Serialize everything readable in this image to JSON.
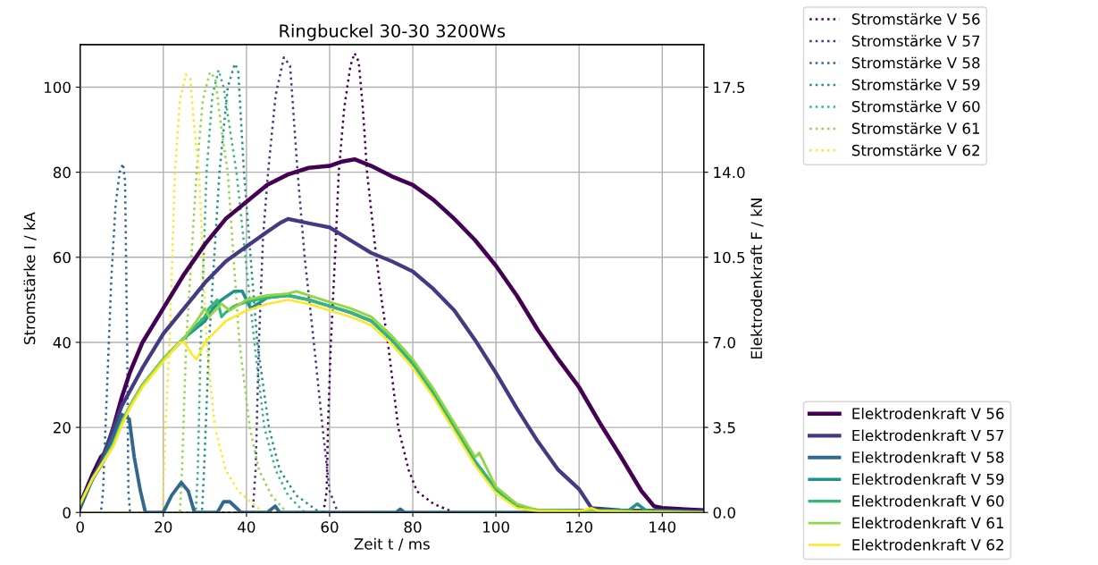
{
  "chart_data": {
    "type": "line",
    "title": "Ringbuckel 30-30 3200Ws",
    "xlabel": "Zeit t / ms",
    "ylabel": "Stromstärke I / kA",
    "y2label": "Elektrodenkraft F / kN",
    "xlim": [
      0,
      150
    ],
    "xticks": [
      0,
      20,
      40,
      60,
      80,
      100,
      120,
      140
    ],
    "ylim": [
      0,
      110
    ],
    "yticks": [
      0,
      20,
      40,
      60,
      80,
      100
    ],
    "y2lim": [
      0,
      19.25
    ],
    "y2ticks": [
      {
        "value": 0,
        "label": "0.0"
      },
      3.5,
      {
        "value": 7,
        "label": "7.0"
      },
      10.5,
      {
        "value": 14,
        "label": "14.0"
      },
      17.5
    ],
    "grid": true,
    "legend": "right",
    "series": [
      {
        "name": "Stromstärke V 56",
        "color": "#440154",
        "line_style": "dotted",
        "x": [
          0,
          58.5,
          59.3,
          59.6,
          60.3,
          61.3,
          62.2,
          63.5,
          65,
          66,
          67,
          68,
          69,
          71,
          72.5,
          74,
          76.5,
          79,
          81,
          85,
          90,
          150
        ],
        "values": [
          0,
          0,
          5,
          20,
          40,
          60,
          80,
          95,
          105,
          108,
          106,
          95,
          80,
          62,
          50,
          40,
          20,
          10,
          5,
          2,
          0,
          0
        ]
      },
      {
        "name": "Stromstärke V 57",
        "color": "#443983",
        "line_style": "dotted",
        "x": [
          0,
          41.5,
          42.2,
          43,
          44,
          45.2,
          47,
          49,
          50.5,
          52.3,
          54,
          56.2,
          58.3,
          60,
          62,
          150
        ],
        "values": [
          0,
          0,
          10,
          40,
          65,
          80,
          98,
          107,
          105,
          80,
          60,
          40,
          20,
          5,
          0,
          0
        ]
      },
      {
        "name": "Stromstärke V 58",
        "color": "#31688e",
        "line_style": "dotted",
        "x": [
          0,
          5,
          5.5,
          6.5,
          7.5,
          8.5,
          9.5,
          10.3,
          10.8,
          11.3,
          11.6,
          12,
          150
        ],
        "values": [
          0,
          0,
          5,
          30,
          55,
          72,
          80,
          82,
          78,
          40,
          5,
          0,
          0
        ]
      },
      {
        "name": "Stromstärke V 59",
        "color": "#21918c",
        "line_style": "dotted",
        "x": [
          0,
          29.3,
          29.8,
          31,
          33.5,
          35.5,
          37.2,
          38,
          39.4,
          42.6,
          45.4,
          48,
          52,
          57.6,
          150
        ],
        "values": [
          0,
          0,
          10,
          40,
          80,
          100,
          105.5,
          104,
          80,
          40,
          20,
          10,
          4,
          0,
          0
        ]
      },
      {
        "name": "Stromstärke V 60",
        "color": "#35b779",
        "line_style": "dotted",
        "x": [
          0,
          27.8,
          28.3,
          29,
          30.4,
          31.8,
          33.3,
          34.5,
          37.6,
          41.9,
          44.3,
          47,
          50,
          54,
          150
        ],
        "values": [
          0,
          0,
          10,
          40,
          80,
          98,
          104,
          100,
          80,
          40,
          20,
          10,
          4,
          0,
          0
        ]
      },
      {
        "name": "Stromstärke V 61",
        "color": "#90d743",
        "line_style": "dotted",
        "x": [
          0,
          24,
          24.5,
          25.5,
          28,
          29.5,
          31.2,
          32.5,
          34,
          35.5,
          38.3,
          40.8,
          43,
          46,
          49.7,
          150
        ],
        "values": [
          0,
          0,
          10,
          40,
          80,
          97,
          103.5,
          102,
          90,
          80,
          40,
          20,
          10,
          4,
          0,
          0
        ]
      },
      {
        "name": "Stromstärke V 62",
        "color": "#fde725",
        "line_style": "dotted",
        "x": [
          0,
          19.8,
          20.5,
          21.5,
          22.8,
          24,
          25.4,
          26.5,
          27.5,
          28.6,
          30.4,
          32.4,
          35,
          38,
          44,
          150
        ],
        "values": [
          0,
          0,
          20,
          40,
          80,
          97,
          103,
          102,
          90,
          80,
          40,
          20,
          10,
          5,
          0,
          0
        ]
      },
      {
        "name": "Elektrodenkraft V 56",
        "color": "#440154",
        "line_style": "solid",
        "axis": "y2",
        "x": [
          0,
          3,
          5,
          6,
          8,
          10,
          12,
          15,
          20,
          25,
          30,
          35,
          40,
          45,
          50,
          55,
          60,
          63,
          66,
          70,
          75,
          80,
          85,
          90,
          95,
          100,
          105,
          110,
          115,
          120,
          125,
          130,
          135,
          138,
          140,
          150
        ],
        "values": [
          0.35,
          1.58,
          2.28,
          2.45,
          3.5,
          4.73,
          5.78,
          7.0,
          8.4,
          9.8,
          11.03,
          12.08,
          12.78,
          13.48,
          13.91,
          14.18,
          14.26,
          14.44,
          14.53,
          14.26,
          13.83,
          13.48,
          12.86,
          12.08,
          11.2,
          10.15,
          8.93,
          7.53,
          6.3,
          5.15,
          3.68,
          2.31,
          0.88,
          0.26,
          0.18,
          0.09
        ]
      },
      {
        "name": "Elektrodenkraft V 57",
        "color": "#443983",
        "line_style": "solid",
        "axis": "y2",
        "x": [
          0,
          3,
          5,
          10,
          15,
          20,
          25,
          30,
          35,
          40,
          45,
          48,
          50,
          55,
          60,
          65,
          70,
          75,
          80,
          85,
          90,
          95,
          100,
          105,
          110,
          115,
          120,
          123,
          130,
          150
        ],
        "values": [
          0.35,
          1.4,
          2.1,
          4.38,
          5.95,
          7.35,
          8.4,
          9.45,
          10.33,
          10.94,
          11.55,
          11.9,
          12.08,
          11.9,
          11.73,
          11.2,
          10.68,
          10.33,
          9.92,
          9.19,
          8.31,
          7.09,
          5.74,
          4.29,
          2.94,
          1.75,
          0.96,
          0.18,
          0.09,
          0.05
        ]
      },
      {
        "name": "Elektrodenkraft V 58",
        "color": "#31688e",
        "line_style": "solid",
        "axis": "y2",
        "x": [
          0,
          3,
          5,
          8,
          10,
          11.8,
          13,
          14.5,
          15.7,
          20,
          22,
          24.3,
          26,
          27.5,
          33,
          34.5,
          36,
          38.7,
          45,
          46.9,
          48,
          60,
          76,
          77,
          78,
          90,
          150
        ],
        "values": [
          0.18,
          1.4,
          1.93,
          3.15,
          4.03,
          3.85,
          2.28,
          0.88,
          0,
          0,
          0.7,
          1.23,
          0.88,
          0,
          0,
          0.44,
          0.44,
          0,
          0,
          0.26,
          0,
          0,
          0,
          0.14,
          0,
          0,
          0
        ]
      },
      {
        "name": "Elektrodenkraft V 59",
        "color": "#21918c",
        "line_style": "solid",
        "axis": "y2",
        "x": [
          0,
          3,
          5,
          8,
          10,
          12,
          15,
          20,
          25,
          30,
          32,
          34,
          37,
          39,
          41,
          45,
          50,
          55,
          60,
          65,
          70,
          75,
          80,
          85,
          90,
          95,
          100,
          105,
          110,
          132,
          134,
          136,
          150
        ],
        "values": [
          0.35,
          1.4,
          1.93,
          2.8,
          3.68,
          4.38,
          5.25,
          6.3,
          7.18,
          7.88,
          8.4,
          8.75,
          9.1,
          9.1,
          8.4,
          8.84,
          8.93,
          8.75,
          8.49,
          8.23,
          7.88,
          7.09,
          6.13,
          4.9,
          3.5,
          2.1,
          0.96,
          0.26,
          0.09,
          0.09,
          0.35,
          0.09,
          0
        ]
      },
      {
        "name": "Elektrodenkraft V 60",
        "color": "#35b779",
        "line_style": "solid",
        "axis": "y2",
        "x": [
          0,
          3,
          5,
          8,
          10,
          12,
          15,
          20,
          25,
          30,
          31,
          33,
          34,
          35,
          37,
          40,
          45,
          50,
          55,
          60,
          65,
          70,
          75,
          80,
          85,
          90,
          95,
          100,
          105,
          110,
          150
        ],
        "values": [
          0.35,
          1.4,
          1.93,
          2.8,
          3.68,
          4.38,
          5.25,
          6.3,
          7.18,
          8.05,
          8.4,
          8.75,
          8.05,
          8.23,
          8.49,
          8.66,
          8.84,
          8.93,
          8.75,
          8.49,
          8.23,
          7.88,
          7.09,
          6.13,
          4.9,
          3.5,
          2.1,
          0.96,
          0.26,
          0.09,
          0
        ]
      },
      {
        "name": "Elektrodenkraft V 61",
        "color": "#90d743",
        "line_style": "solid",
        "axis": "y2",
        "x": [
          0,
          3,
          5,
          8,
          10,
          12,
          15,
          20,
          25,
          28,
          30,
          31,
          32,
          34,
          36,
          40,
          45,
          50,
          52,
          55,
          60,
          65,
          70,
          75,
          80,
          85,
          90,
          95,
          96,
          100,
          105,
          110,
          150
        ],
        "values": [
          0.35,
          1.4,
          1.93,
          2.8,
          3.68,
          4.38,
          5.25,
          6.3,
          7.18,
          7.88,
          8.4,
          8.05,
          8.23,
          8.58,
          8.31,
          8.75,
          8.93,
          9.01,
          9.1,
          8.93,
          8.66,
          8.4,
          8.05,
          7.26,
          6.3,
          5.08,
          3.68,
          2.28,
          2.45,
          1.05,
          0.35,
          0.09,
          0
        ]
      },
      {
        "name": "Elektrodenkraft V 62",
        "color": "#fde725",
        "line_style": "solid",
        "axis": "y2",
        "x": [
          0,
          3,
          5,
          8,
          10,
          12,
          15,
          20,
          24,
          25,
          27,
          28,
          30,
          35,
          40,
          45,
          50,
          55,
          60,
          65,
          70,
          75,
          80,
          85,
          90,
          95,
          100,
          105,
          110,
          120,
          123,
          125,
          150
        ],
        "values": [
          0.35,
          1.4,
          1.93,
          2.71,
          3.59,
          4.29,
          5.16,
          6.21,
          7.0,
          7.0,
          6.48,
          6.3,
          7.0,
          7.88,
          8.31,
          8.58,
          8.75,
          8.58,
          8.31,
          8.05,
          7.7,
          6.91,
          5.95,
          4.73,
          3.33,
          1.93,
          0.79,
          0.18,
          0.05,
          0.05,
          0.18,
          0.05,
          0
        ]
      }
    ]
  }
}
